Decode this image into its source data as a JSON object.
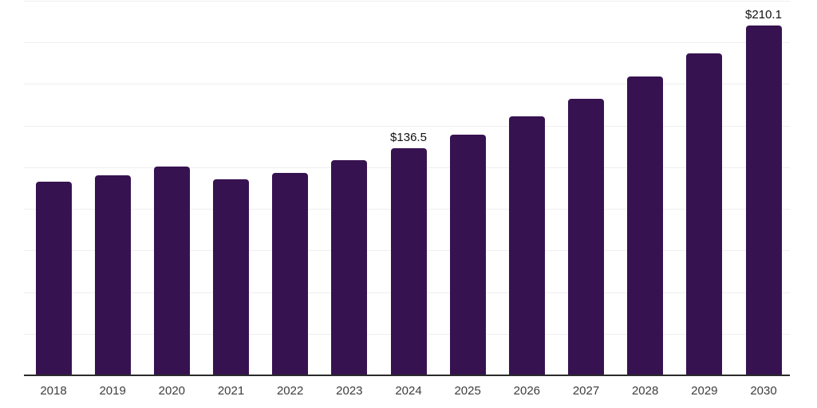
{
  "chart": {
    "background_color": "#ffffff",
    "bar_color": "#371250",
    "grid_color": "#efefef",
    "axis_color": "#2b2b2b",
    "tick_label_color": "#3d3d3d",
    "data_label_color": "#111111"
  },
  "chart_data": {
    "type": "bar",
    "title": "",
    "xlabel": "",
    "ylabel": "",
    "categories": [
      "2018",
      "2019",
      "2020",
      "2021",
      "2022",
      "2023",
      "2024",
      "2025",
      "2026",
      "2027",
      "2028",
      "2029",
      "2030"
    ],
    "values": [
      116.5,
      120.2,
      125.2,
      117.6,
      121.7,
      129.2,
      136.5,
      144.8,
      155.8,
      166.3,
      179.3,
      193.6,
      210.1
    ],
    "data_labels": [
      {
        "category": "2024",
        "text": "$136.5"
      },
      {
        "category": "2030",
        "text": "$210.1"
      }
    ],
    "unit_prefix": "$",
    "ylim": [
      0,
      225
    ],
    "gridline_interval": 25,
    "grid": true,
    "legend": false,
    "y_axis_labels_visible": false
  }
}
